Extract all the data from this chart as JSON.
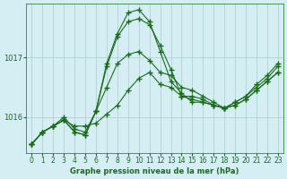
{
  "title": "Graphe pression niveau de la mer (hPa)",
  "background_color": "#d4eef4",
  "grid_color": "#aacccc",
  "line_color": "#1a6b1a",
  "xlim": [
    -0.5,
    23.5
  ],
  "ylim": [
    1015.4,
    1017.9
  ],
  "yticks": [
    1016,
    1017
  ],
  "xticks": [
    0,
    1,
    2,
    3,
    4,
    5,
    6,
    7,
    8,
    9,
    10,
    11,
    12,
    13,
    14,
    15,
    16,
    17,
    18,
    19,
    20,
    21,
    22,
    23
  ],
  "line1": [
    1015.55,
    1015.75,
    1015.85,
    1015.95,
    1015.85,
    1015.85,
    1015.9,
    1016.05,
    1016.2,
    1016.45,
    1016.65,
    1016.75,
    1016.55,
    1016.5,
    1016.35,
    1016.35,
    1016.3,
    1016.2,
    1016.15,
    1016.25,
    1016.35,
    1016.5,
    1016.65,
    1016.85
  ],
  "line2": [
    1015.55,
    1015.75,
    1015.85,
    1015.95,
    1015.75,
    1015.7,
    1016.1,
    1016.85,
    1017.35,
    1017.6,
    1017.65,
    1017.55,
    1017.2,
    1016.8,
    1016.35,
    1016.3,
    1016.25,
    1016.2,
    1016.15,
    1016.2,
    1016.3,
    1016.45,
    1016.6,
    1016.75
  ],
  "line3": [
    1015.55,
    1015.75,
    1015.85,
    1015.95,
    1015.75,
    1015.7,
    1016.1,
    1016.9,
    1017.4,
    1017.75,
    1017.8,
    1017.6,
    1017.1,
    1016.6,
    1016.4,
    1016.25,
    1016.25,
    1016.2,
    1016.15,
    1016.2,
    1016.3,
    1016.45,
    1016.6,
    1016.75
  ],
  "line4": [
    1015.55,
    1015.75,
    1015.85,
    1016.0,
    1015.8,
    1015.75,
    1016.1,
    1016.5,
    1016.9,
    1017.05,
    1017.1,
    1016.95,
    1016.75,
    1016.7,
    1016.5,
    1016.45,
    1016.35,
    1016.25,
    1016.15,
    1016.25,
    1016.35,
    1016.55,
    1016.7,
    1016.9
  ]
}
